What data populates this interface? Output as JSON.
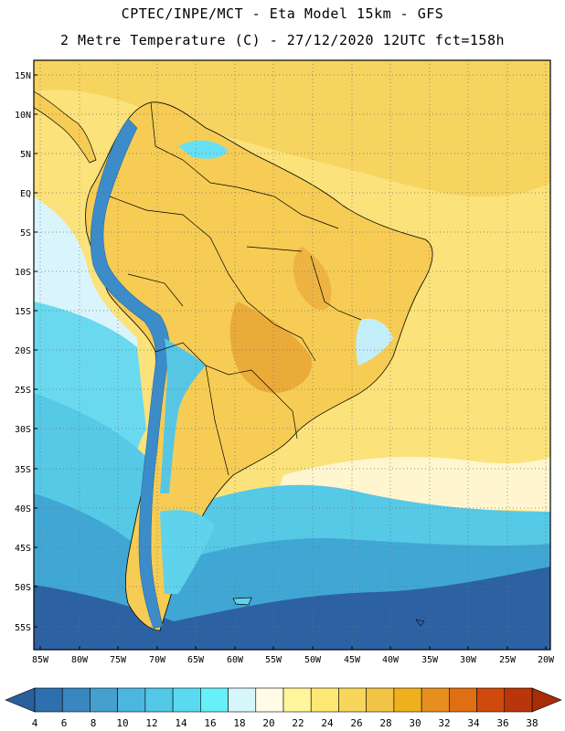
{
  "header": {
    "line1": "CPTEC/INPE/MCT -  Eta Model 15km - GFS",
    "line2": "2 Metre Temperature (C) - 27/12/2020 12UTC fct=158h"
  },
  "axes": {
    "lat_labels": [
      "15N",
      "10N",
      "5N",
      "EQ",
      "5S",
      "10S",
      "15S",
      "20S",
      "25S",
      "30S",
      "35S",
      "40S",
      "45S",
      "50S",
      "55S"
    ],
    "lon_labels": [
      "85W",
      "80W",
      "75W",
      "70W",
      "65W",
      "60W",
      "55W",
      "50W",
      "45W",
      "40W",
      "35W",
      "30W",
      "25W",
      "20W"
    ]
  },
  "colorbar": {
    "labels": [
      "4",
      "6",
      "8",
      "10",
      "12",
      "14",
      "16",
      "18",
      "20",
      "22",
      "24",
      "26",
      "28",
      "30",
      "32",
      "34",
      "36",
      "38"
    ],
    "colors": [
      "#2e6fae",
      "#3a86c0",
      "#45a0d0",
      "#4cb6de",
      "#52c8e6",
      "#5adaf0",
      "#66f0f8",
      "#d6f6fc",
      "#fffbe6",
      "#fff59a",
      "#fde873",
      "#f8d65c",
      "#f2c445",
      "#eeb01e",
      "#e68f1e",
      "#e06f14",
      "#cf4a0c",
      "#b8360a"
    ],
    "left_arrow_color": "#2a5f9e",
    "right_arrow_color": "#a82d06"
  },
  "palette": {
    "ocean_cold": "#2b5f9f",
    "ocean_cool": "#3d8dc4",
    "ocean_mid": "#4fbedf",
    "ocean_warm": "#6fe1f3",
    "ocean_pale": "#ccf4fb",
    "sea_warm": "#fde57a",
    "sea_hot": "#f4c84e",
    "land_hot": "#ecb23c",
    "land_veryhot": "#e39b2a",
    "andes": "#3f8ecb",
    "andes_cold": "#2c6aa8"
  }
}
